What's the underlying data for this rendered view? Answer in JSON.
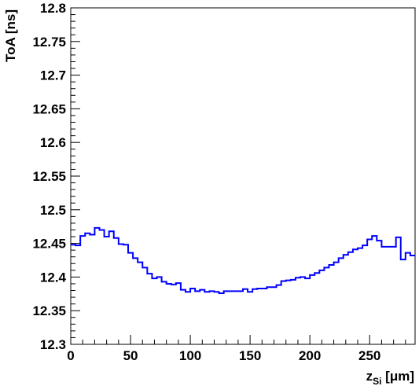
{
  "chart_data": {
    "type": "line",
    "title": "",
    "xlabel": {
      "main": "z",
      "sub": "Si",
      "unit": " [μm]"
    },
    "ylabel": "ToA [ns]",
    "xlim": [
      0,
      288
    ],
    "ylim": [
      12.3,
      12.8
    ],
    "grid": false,
    "legend": "none",
    "series_color": "#0000ff",
    "x_ticks": [
      0,
      50,
      100,
      150,
      200,
      250
    ],
    "x_tick_labels": [
      "0",
      "50",
      "100",
      "150",
      "200",
      "250"
    ],
    "y_ticks": [
      12.3,
      12.35,
      12.4,
      12.45,
      12.5,
      12.55,
      12.6,
      12.65,
      12.7,
      12.75,
      12.8
    ],
    "y_tick_labels": [
      "12.3",
      "12.35",
      "12.4",
      "12.45",
      "12.5",
      "12.55",
      "12.6",
      "12.65",
      "12.7",
      "12.75",
      "12.8"
    ],
    "bin_width": 4,
    "x": [
      2,
      6,
      10,
      14,
      18,
      22,
      26,
      30,
      34,
      38,
      42,
      46,
      50,
      54,
      58,
      62,
      66,
      70,
      74,
      78,
      82,
      86,
      90,
      94,
      98,
      102,
      106,
      110,
      114,
      118,
      122,
      126,
      130,
      134,
      138,
      142,
      146,
      150,
      154,
      158,
      162,
      166,
      170,
      174,
      178,
      182,
      186,
      190,
      194,
      198,
      202,
      206,
      210,
      214,
      218,
      222,
      226,
      230,
      234,
      238,
      242,
      246,
      250,
      254,
      258,
      262,
      266,
      270,
      274,
      278,
      282,
      286
    ],
    "values": [
      12.448,
      12.447,
      12.461,
      12.465,
      12.463,
      12.473,
      12.47,
      12.46,
      12.468,
      12.458,
      12.449,
      12.448,
      12.436,
      12.428,
      12.422,
      12.414,
      12.405,
      12.398,
      12.4,
      12.393,
      12.39,
      12.389,
      12.391,
      12.381,
      12.378,
      12.383,
      12.379,
      12.381,
      12.378,
      12.379,
      12.378,
      12.376,
      12.379,
      12.379,
      12.379,
      12.379,
      12.382,
      12.378,
      12.382,
      12.383,
      12.383,
      12.385,
      12.385,
      12.388,
      12.394,
      12.395,
      12.396,
      12.399,
      12.4,
      12.398,
      12.403,
      12.406,
      12.41,
      12.414,
      12.418,
      12.422,
      12.428,
      12.433,
      12.437,
      12.441,
      12.443,
      12.447,
      12.456,
      12.461,
      12.454,
      12.445,
      12.445,
      12.445,
      12.459,
      12.426,
      12.436,
      12.432
    ]
  }
}
